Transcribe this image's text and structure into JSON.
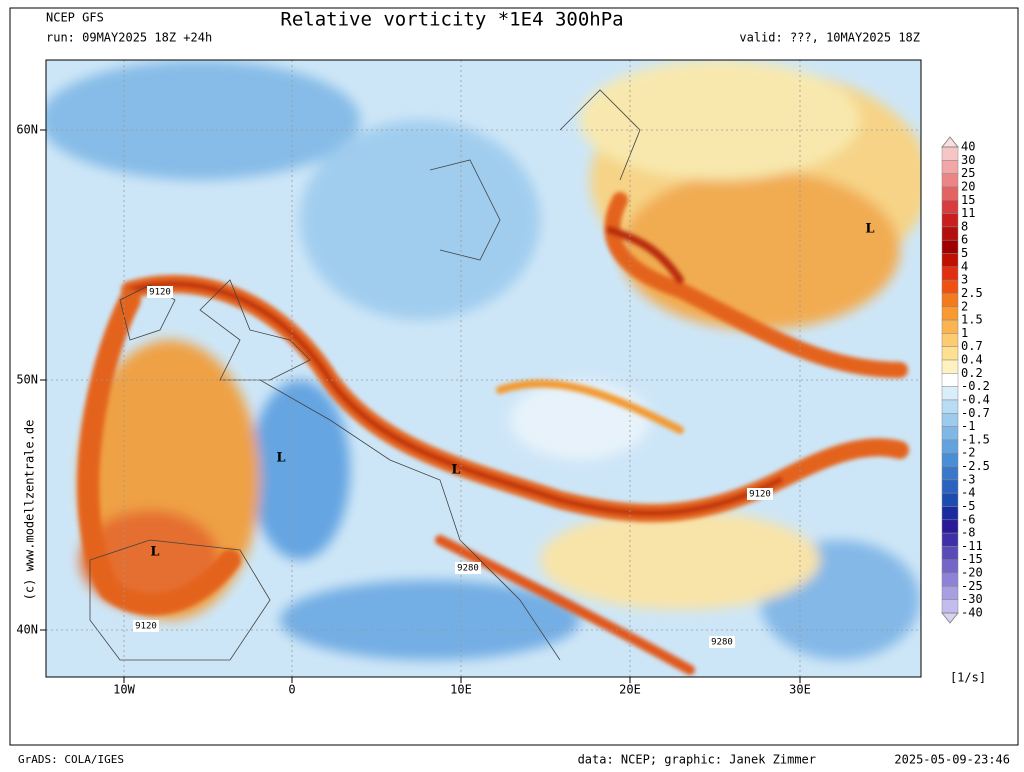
{
  "header": {
    "model": "NCEP GFS",
    "title": "Relative vorticity *1E4 300hPa",
    "run": "run: 09MAY2025 18Z +24h",
    "valid": "valid: ???, 10MAY2025 18Z"
  },
  "axes": {
    "lat_labels": [
      "60N",
      "50N",
      "40N"
    ],
    "lon_labels": [
      "10W",
      "0",
      "10E",
      "20E",
      "30E"
    ]
  },
  "map_labels": {
    "lows": [
      "L",
      "L",
      "L",
      "L"
    ],
    "contours": [
      "9120",
      "9120",
      "9120",
      "9280",
      "9280"
    ]
  },
  "legend": {
    "labels": [
      "40",
      "30",
      "25",
      "20",
      "15",
      "11",
      "8",
      "6",
      "5",
      "4",
      "3",
      "2.5",
      "2",
      "1.5",
      "1",
      "0.7",
      "0.4",
      "0.2",
      "-0.2",
      "-0.4",
      "-0.7",
      "-1",
      "-1.5",
      "-2",
      "-2.5",
      "-3",
      "-4",
      "-5",
      "-6",
      "-8",
      "-11",
      "-15",
      "-20",
      "-25",
      "-30",
      "-40"
    ],
    "unit": "[1/s]"
  },
  "side_text": "(c) www.modellzentrale.de",
  "footer": {
    "left": "GrADS: COLA/IGES",
    "center": "data: NCEP; graphic: Janek Zimmer",
    "right": "2025-05-09-23:46"
  }
}
